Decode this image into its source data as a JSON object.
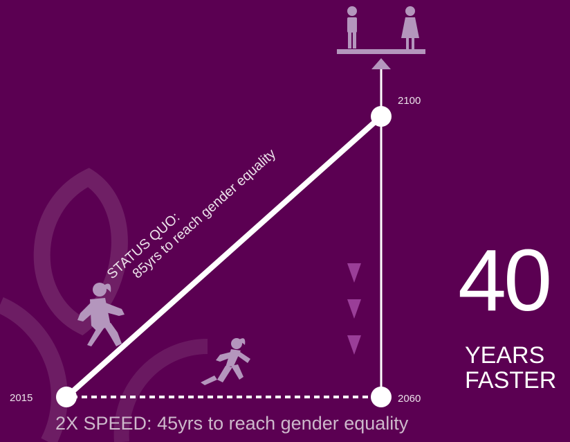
{
  "diagram": {
    "colors": {
      "background": "#5b0052",
      "line": "#ffffff",
      "figure": "#b496bd",
      "arrow": "#9a3e98",
      "leaf": "#7a2b72"
    },
    "icons": {
      "equality": "man-woman-on-balance-scale-icon",
      "walker": "walking-woman-icon",
      "runner": "running-woman-icon",
      "background": "leaf-decoration"
    },
    "years": {
      "start": "2015",
      "status_quo_end": "2100",
      "accelerated_end": "2060"
    },
    "status_quo": {
      "line1": "STATUS QUO:",
      "line2": "85yrs to reach gender equality"
    },
    "accelerated_caption": "2X SPEED: 45yrs to reach gender equality",
    "headline": {
      "number": "40",
      "line1": "YEARS",
      "line2": "FASTER"
    }
  }
}
